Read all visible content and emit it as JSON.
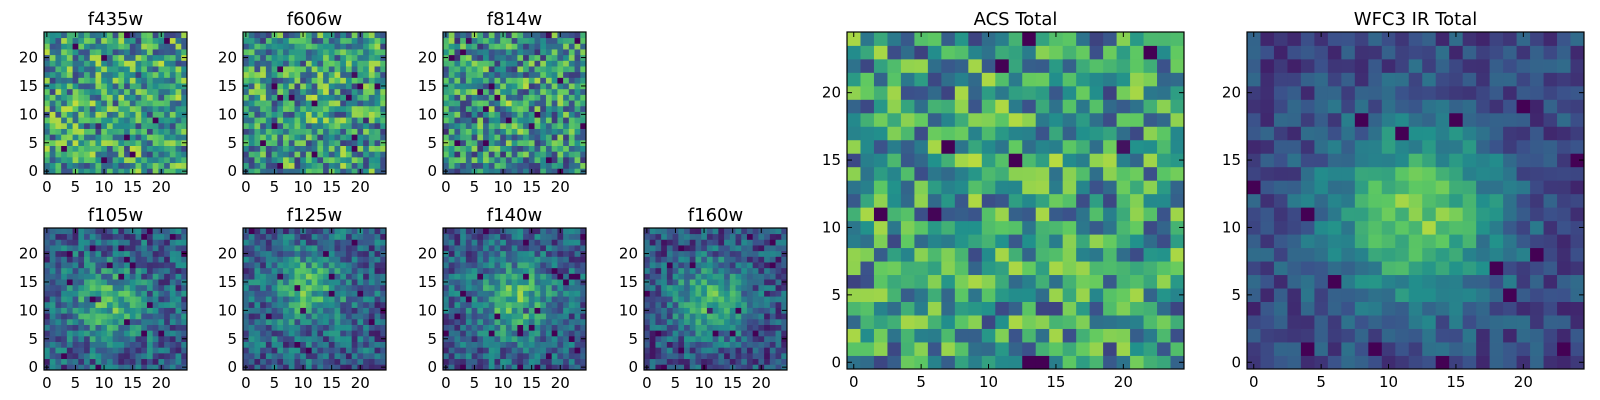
{
  "figure": {
    "description_colormap": "viridis",
    "colormap_stops": [
      "#440154",
      "#3b528b",
      "#21918c",
      "#5ec962",
      "#fde725"
    ]
  },
  "chart_data": [
    {
      "type": "heatmap",
      "title": "f435w",
      "grid": [
        25,
        25
      ],
      "peak": [
        12,
        12
      ],
      "blob": 0.0,
      "noise": 0.95,
      "floor": 0.55,
      "seed": 11,
      "xlim": [
        -0.5,
        24.5
      ],
      "ylim": [
        -0.5,
        24.5
      ],
      "xticks": [
        0,
        5,
        10,
        15,
        20
      ],
      "yticks": [
        0,
        5,
        10,
        15,
        20
      ],
      "xtick_labels": [
        "0",
        "5",
        "10",
        "15",
        "20"
      ],
      "ytick_labels": [
        "0",
        "5",
        "10",
        "15",
        "20"
      ]
    },
    {
      "type": "heatmap",
      "title": "f606w",
      "grid": [
        25,
        25
      ],
      "peak": [
        12,
        12
      ],
      "blob": 0.05,
      "noise": 0.95,
      "floor": 0.55,
      "seed": 23,
      "xlim": [
        -0.5,
        24.5
      ],
      "ylim": [
        -0.5,
        24.5
      ],
      "xticks": [
        0,
        5,
        10,
        15,
        20
      ],
      "yticks": [
        0,
        5,
        10,
        15,
        20
      ],
      "xtick_labels": [
        "0",
        "5",
        "10",
        "15",
        "20"
      ],
      "ytick_labels": [
        "0",
        "5",
        "10",
        "15",
        "20"
      ]
    },
    {
      "type": "heatmap",
      "title": "f814w",
      "grid": [
        25,
        25
      ],
      "peak": [
        12,
        12
      ],
      "blob": 0.08,
      "noise": 0.95,
      "floor": 0.52,
      "seed": 37,
      "xlim": [
        -0.5,
        24.5
      ],
      "ylim": [
        -0.5,
        24.5
      ],
      "xticks": [
        0,
        5,
        10,
        15,
        20
      ],
      "yticks": [
        0,
        5,
        10,
        15,
        20
      ],
      "xtick_labels": [
        "0",
        "5",
        "10",
        "15",
        "20"
      ],
      "ytick_labels": [
        "0",
        "5",
        "10",
        "15",
        "20"
      ]
    },
    {
      "type": "heatmap",
      "title": "f105w",
      "grid": [
        25,
        25
      ],
      "peak": [
        11,
        11
      ],
      "blob": 0.4,
      "noise": 0.6,
      "floor": 0.4,
      "seed": 41,
      "xlim": [
        -0.5,
        24.5
      ],
      "ylim": [
        -0.5,
        24.5
      ],
      "xticks": [
        0,
        5,
        10,
        15,
        20
      ],
      "yticks": [
        0,
        5,
        10,
        15,
        20
      ],
      "xtick_labels": [
        "0",
        "5",
        "10",
        "15",
        "20"
      ],
      "ytick_labels": [
        "0",
        "5",
        "10",
        "15",
        "20"
      ]
    },
    {
      "type": "heatmap",
      "title": "f125w",
      "grid": [
        25,
        25
      ],
      "peak": [
        11,
        14
      ],
      "blob": 0.4,
      "noise": 0.6,
      "floor": 0.4,
      "seed": 53,
      "xlim": [
        -0.5,
        24.5
      ],
      "ylim": [
        -0.5,
        24.5
      ],
      "xticks": [
        0,
        5,
        10,
        15,
        20
      ],
      "yticks": [
        0,
        5,
        10,
        15,
        20
      ],
      "xtick_labels": [
        "0",
        "5",
        "10",
        "15",
        "20"
      ],
      "ytick_labels": [
        "0",
        "5",
        "10",
        "15",
        "20"
      ]
    },
    {
      "type": "heatmap",
      "title": "f140w",
      "grid": [
        25,
        25
      ],
      "peak": [
        12,
        12
      ],
      "blob": 0.45,
      "noise": 0.55,
      "floor": 0.42,
      "seed": 67,
      "xlim": [
        -0.5,
        24.5
      ],
      "ylim": [
        -0.5,
        24.5
      ],
      "xticks": [
        0,
        5,
        10,
        15,
        20
      ],
      "yticks": [
        0,
        5,
        10,
        15,
        20
      ],
      "xtick_labels": [
        "0",
        "5",
        "10",
        "15",
        "20"
      ],
      "ytick_labels": [
        "0",
        "5",
        "10",
        "15",
        "20"
      ]
    },
    {
      "type": "heatmap",
      "title": "f160w",
      "grid": [
        25,
        25
      ],
      "peak": [
        11,
        12
      ],
      "blob": 0.5,
      "noise": 0.55,
      "floor": 0.35,
      "seed": 79,
      "xlim": [
        -0.5,
        24.5
      ],
      "ylim": [
        -0.5,
        24.5
      ],
      "xticks": [
        0,
        5,
        10,
        15,
        20
      ],
      "yticks": [
        0,
        5,
        10,
        15,
        20
      ],
      "xtick_labels": [
        "0",
        "5",
        "10",
        "15",
        "20"
      ],
      "ytick_labels": [
        "0",
        "5",
        "10",
        "15",
        "20"
      ]
    },
    {
      "type": "heatmap",
      "title": "ACS Total",
      "grid": [
        25,
        25
      ],
      "peak": [
        12,
        12
      ],
      "blob": 0.05,
      "noise": 0.9,
      "floor": 0.55,
      "seed": 97,
      "xlim": [
        -0.5,
        24.5
      ],
      "ylim": [
        -0.5,
        24.5
      ],
      "xticks": [
        0,
        5,
        10,
        15,
        20
      ],
      "yticks": [
        0,
        5,
        10,
        15,
        20
      ],
      "xtick_labels": [
        "0",
        "5",
        "10",
        "15",
        "20"
      ],
      "ytick_labels": [
        "0",
        "5",
        "10",
        "15",
        "20"
      ]
    },
    {
      "type": "heatmap",
      "title": "WFC3 IR Total",
      "grid": [
        25,
        25
      ],
      "peak": [
        12,
        11
      ],
      "blob": 0.65,
      "noise": 0.35,
      "floor": 0.35,
      "seed": 131,
      "xlim": [
        -0.5,
        24.5
      ],
      "ylim": [
        -0.5,
        24.5
      ],
      "xticks": [
        0,
        5,
        10,
        15,
        20
      ],
      "yticks": [
        0,
        5,
        10,
        15,
        20
      ],
      "xtick_labels": [
        "0",
        "5",
        "10",
        "15",
        "20"
      ],
      "ytick_labels": [
        "0",
        "5",
        "10",
        "15",
        "20"
      ]
    }
  ]
}
